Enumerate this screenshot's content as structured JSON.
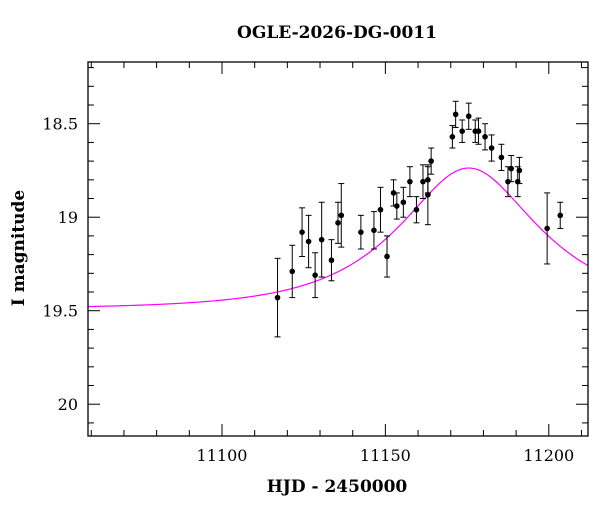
{
  "chart_data": {
    "type": "scatter",
    "title": "OGLE-2026-DG-0011",
    "xlabel": "HJD - 2450000",
    "ylabel": "I magnitude",
    "xlim": [
      11059,
      11212
    ],
    "ylim": [
      20.17,
      18.17
    ],
    "y_inverted": true,
    "x_ticks": [
      11100,
      11150,
      11200
    ],
    "x_tick_labels": [
      "11100",
      "11150",
      "11200"
    ],
    "y_ticks": [
      18.5,
      19,
      19.5,
      20
    ],
    "y_tick_labels": [
      "18.5",
      "19",
      "19.5",
      "20"
    ],
    "grid": false,
    "series": [
      {
        "type": "errorbar",
        "color": "#000000",
        "points": [
          {
            "x": 11117.0,
            "y": 19.43,
            "err": 0.21
          },
          {
            "x": 11121.5,
            "y": 19.29,
            "err": 0.14
          },
          {
            "x": 11124.5,
            "y": 19.08,
            "err": 0.13
          },
          {
            "x": 11126.5,
            "y": 19.13,
            "err": 0.14
          },
          {
            "x": 11128.5,
            "y": 19.31,
            "err": 0.12
          },
          {
            "x": 11130.5,
            "y": 19.12,
            "err": 0.2
          },
          {
            "x": 11133.5,
            "y": 19.23,
            "err": 0.11
          },
          {
            "x": 11135.5,
            "y": 19.03,
            "err": 0.11
          },
          {
            "x": 11136.5,
            "y": 18.99,
            "err": 0.17
          },
          {
            "x": 11142.5,
            "y": 19.08,
            "err": 0.09
          },
          {
            "x": 11146.5,
            "y": 19.07,
            "err": 0.1
          },
          {
            "x": 11148.5,
            "y": 18.96,
            "err": 0.12
          },
          {
            "x": 11150.5,
            "y": 19.21,
            "err": 0.11
          },
          {
            "x": 11152.5,
            "y": 18.87,
            "err": 0.07
          },
          {
            "x": 11153.5,
            "y": 18.94,
            "err": 0.07
          },
          {
            "x": 11155.5,
            "y": 18.92,
            "err": 0.08
          },
          {
            "x": 11157.5,
            "y": 18.81,
            "err": 0.08
          },
          {
            "x": 11159.5,
            "y": 18.96,
            "err": 0.07
          },
          {
            "x": 11161.5,
            "y": 18.81,
            "err": 0.09
          },
          {
            "x": 11163.0,
            "y": 18.88,
            "err": 0.16
          },
          {
            "x": 11163.0,
            "y": 18.8,
            "err": 0.07
          },
          {
            "x": 11164.0,
            "y": 18.7,
            "err": 0.07
          },
          {
            "x": 11170.5,
            "y": 18.57,
            "err": 0.06
          },
          {
            "x": 11171.5,
            "y": 18.45,
            "err": 0.07
          },
          {
            "x": 11173.5,
            "y": 18.54,
            "err": 0.06
          },
          {
            "x": 11175.5,
            "y": 18.46,
            "err": 0.07
          },
          {
            "x": 11177.5,
            "y": 18.54,
            "err": 0.06
          },
          {
            "x": 11178.5,
            "y": 18.54,
            "err": 0.07
          },
          {
            "x": 11180.5,
            "y": 18.57,
            "err": 0.07
          },
          {
            "x": 11182.5,
            "y": 18.63,
            "err": 0.07
          },
          {
            "x": 11185.5,
            "y": 18.68,
            "err": 0.07
          },
          {
            "x": 11187.5,
            "y": 18.81,
            "err": 0.08
          },
          {
            "x": 11188.5,
            "y": 18.74,
            "err": 0.07
          },
          {
            "x": 11190.5,
            "y": 18.81,
            "err": 0.08
          },
          {
            "x": 11191.0,
            "y": 18.75,
            "err": 0.07
          },
          {
            "x": 11199.5,
            "y": 19.06,
            "err": 0.19
          },
          {
            "x": 11203.5,
            "y": 18.99,
            "err": 0.07
          }
        ]
      },
      {
        "type": "line",
        "color": "#ff00ff",
        "model": {
          "t0": 11175.5,
          "tE": 35,
          "u0": 0.556,
          "I_base": 19.49
        }
      }
    ]
  }
}
